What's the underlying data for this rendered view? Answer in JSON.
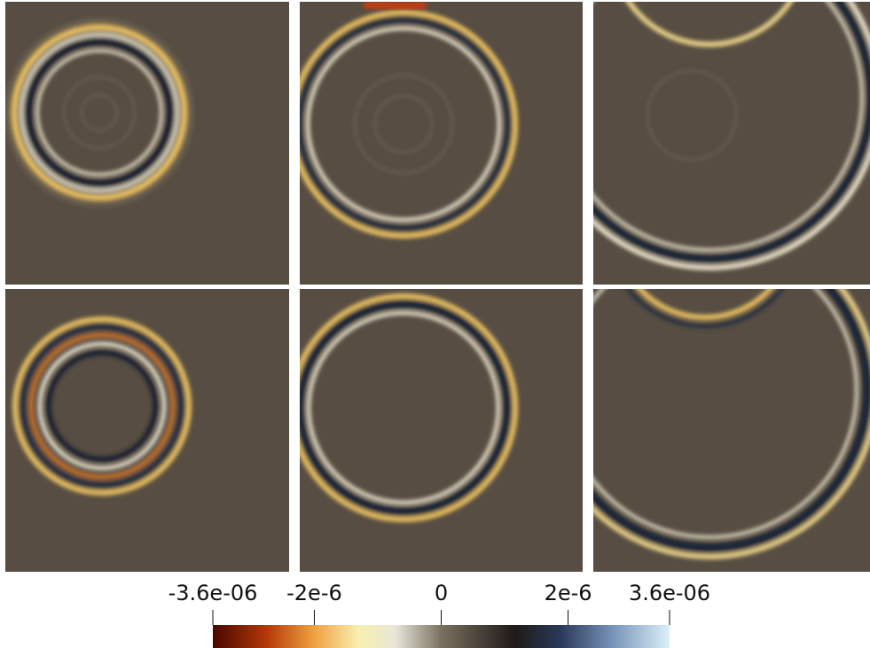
{
  "colorbar": {
    "lim": [
      -3.6e-06,
      3.6e-06
    ],
    "ticks": [
      {
        "value": -3.6e-06,
        "label": "-3.6e-06"
      },
      {
        "value": -2e-06,
        "label": "-2e-6"
      },
      0,
      {
        "value": 2e-06,
        "label": "2e-6"
      },
      {
        "value": 3.6e-06,
        "label": "3.6e-06"
      }
    ]
  }
}
